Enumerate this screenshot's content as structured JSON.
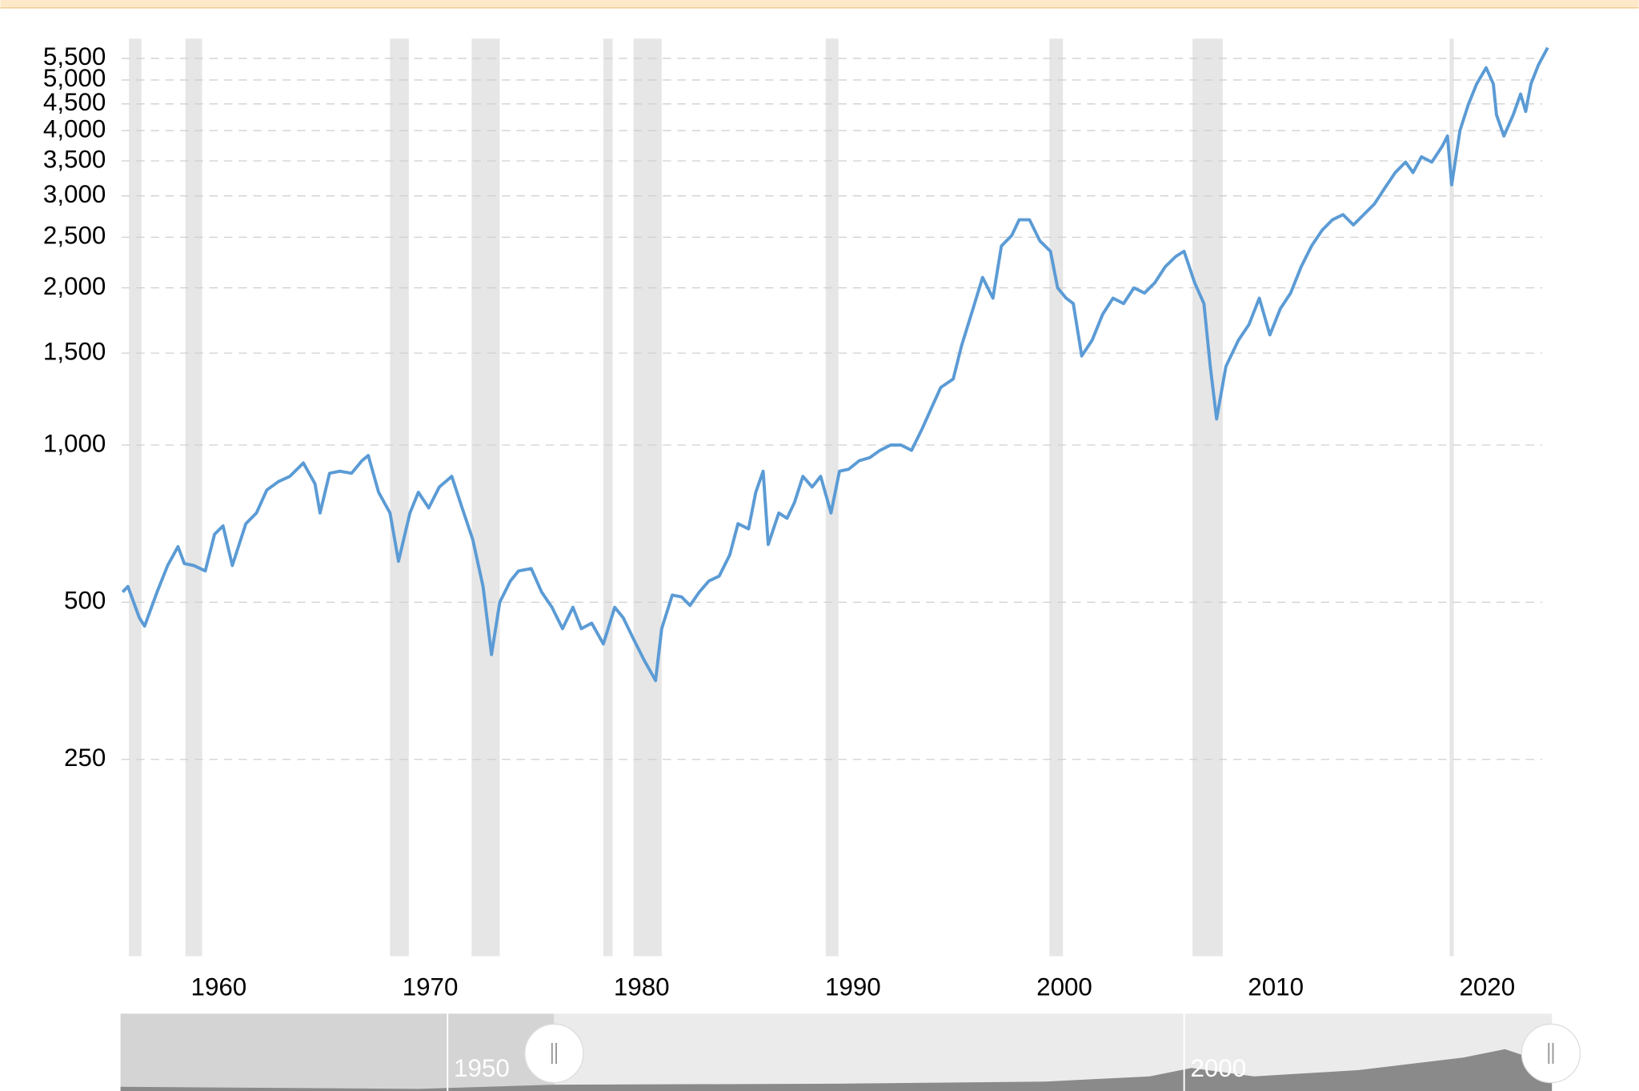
{
  "chart_data": {
    "type": "line",
    "x": [
      1955.45,
      1955.7,
      1956.24,
      1956.49,
      1957.08,
      1957.58,
      1958.07,
      1958.37,
      1958.81,
      1959.36,
      1959.8,
      1960.2,
      1960.64,
      1961.28,
      1961.78,
      1962.27,
      1962.82,
      1963.36,
      1964.0,
      1964.55,
      1964.79,
      1965.24,
      1965.73,
      1966.28,
      1966.77,
      1967.07,
      1967.56,
      1968.1,
      1968.5,
      1969.04,
      1969.44,
      1969.93,
      1970.43,
      1971.02,
      1971.51,
      1972.01,
      1972.5,
      1972.9,
      1973.29,
      1973.79,
      1974.18,
      1974.78,
      1975.27,
      1975.76,
      1976.26,
      1976.75,
      1977.15,
      1977.64,
      1978.19,
      1978.73,
      1979.13,
      1979.62,
      1980.11,
      1980.66,
      1980.95,
      1981.45,
      1981.89,
      1982.29,
      1982.73,
      1983.18,
      1983.67,
      1984.17,
      1984.56,
      1985.06,
      1985.4,
      1985.75,
      1985.99,
      1986.49,
      1986.88,
      1987.23,
      1987.63,
      1988.07,
      1988.47,
      1988.96,
      1989.36,
      1989.8,
      1990.29,
      1990.79,
      1991.28,
      1991.78,
      1992.27,
      1992.77,
      1993.26,
      1993.7,
      1994.15,
      1994.74,
      1995.14,
      1995.63,
      1996.13,
      1996.62,
      1997.02,
      1997.51,
      1997.86,
      1998.35,
      1998.84,
      1999.34,
      1999.68,
      2000.08,
      2000.42,
      2000.82,
      2001.31,
      2001.81,
      2002.3,
      2002.8,
      2003.29,
      2003.79,
      2004.28,
      2004.77,
      2005.27,
      2005.66,
      2006.16,
      2006.6,
      2006.9,
      2007.2,
      2007.64,
      2008.23,
      2008.73,
      2009.22,
      2009.72,
      2010.21,
      2010.7,
      2011.2,
      2011.69,
      2012.19,
      2012.68,
      2013.18,
      2013.67,
      2014.16,
      2014.66,
      2015.15,
      2015.65,
      2016.14,
      2016.49,
      2016.89,
      2017.38,
      2017.87,
      2018.12,
      2018.32,
      2018.71,
      2019.11,
      2019.5,
      2019.95,
      2020.29,
      2020.44,
      2020.79,
      2021.23,
      2021.58,
      2021.82,
      2022.07,
      2022.42,
      2022.86
    ],
    "values": [
      523,
      536,
      467,
      450,
      523,
      588,
      639,
      593,
      588,
      574,
      675,
      700,
      588,
      707,
      741,
      820,
      851,
      871,
      924,
      843,
      741,
      883,
      891,
      883,
      933,
      955,
      812,
      741,
      599,
      741,
      812,
      758,
      831,
      871,
      758,
      660,
      536,
      397,
      500,
      549,
      574,
      580,
      523,
      489,
      445,
      489,
      445,
      456,
      416,
      489,
      467,
      425,
      388,
      354,
      445,
      516,
      512,
      493,
      523,
      549,
      561,
      616,
      707,
      691,
      812,
      891,
      645,
      741,
      724,
      776,
      871,
      831,
      871,
      741,
      891,
      899,
      933,
      946,
      977,
      1000,
      1000,
      977,
      1072,
      1175,
      1289,
      1338,
      1552,
      1798,
      2094,
      1911,
      2405,
      2520,
      2700,
      2700,
      2460,
      2350,
      2000,
      1911,
      1866,
      1481,
      1587,
      1780,
      1911,
      1866,
      2000,
      1954,
      2046,
      2195,
      2297,
      2350,
      2046,
      1866,
      1414,
      1122,
      1414,
      1587,
      1701,
      1911,
      1625,
      1823,
      1954,
      2195,
      2405,
      2578,
      2700,
      2762,
      2639,
      2762,
      2894,
      3102,
      3325,
      3482,
      3325,
      3564,
      3482,
      3732,
      3906,
      3150,
      4000,
      4490,
      4914,
      5278,
      4914,
      4287,
      3906,
      4287,
      4700,
      4353,
      4914,
      5340,
      5766
    ],
    "color": "#5b9bd5",
    "log_scale": true,
    "grid": true,
    "xlim": [
      1955.4,
      2022.9
    ],
    "xticks": [
      1960,
      1970,
      1980,
      1990,
      2000,
      2010,
      2020
    ],
    "ylim": [
      105,
      6000
    ],
    "yticks": [
      250,
      500,
      {
        "value": 1000,
        "label": "1,000"
      },
      {
        "value": 1500,
        "label": "1,500"
      },
      {
        "value": 2000,
        "label": "2,000"
      },
      {
        "value": 2500,
        "label": "2,500"
      },
      {
        "value": 3000,
        "label": "3,000"
      },
      {
        "value": 3500,
        "label": "3,500"
      },
      {
        "value": 4000,
        "label": "4,000"
      },
      {
        "value": 4500,
        "label": "4,500"
      },
      {
        "value": 5000,
        "label": "5,000"
      },
      {
        "value": 5500,
        "label": "5,500"
      }
    ],
    "recessions": [
      [
        1955.75,
        1956.34
      ],
      [
        1958.42,
        1959.21
      ],
      [
        1968.1,
        1968.99
      ],
      [
        1971.96,
        1973.29
      ],
      [
        1978.19,
        1978.63
      ],
      [
        1979.62,
        1980.95
      ],
      [
        1988.71,
        1989.31
      ],
      [
        1999.29,
        1999.93
      ],
      [
        2006.06,
        2007.49
      ],
      [
        2018.22,
        2018.42
      ]
    ],
    "recession_color": "#e6e6e6",
    "navigator": {
      "labels": [
        "1950",
        "2000"
      ]
    }
  }
}
